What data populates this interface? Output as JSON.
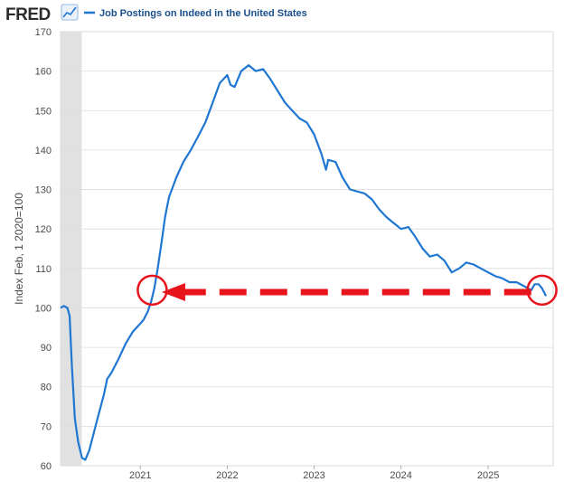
{
  "header": {
    "brand": "FRED",
    "brand_icon": "trend-chart-icon",
    "legend_label": "Job Postings on Indeed in the United States"
  },
  "chart_data": {
    "type": "line",
    "ylabel": "Index Feb, 1 2020=100",
    "xlabel": "",
    "ylim": [
      60,
      170
    ],
    "yticks": [
      60,
      70,
      80,
      90,
      100,
      110,
      120,
      130,
      140,
      150,
      160,
      170
    ],
    "xticks": [
      "2021",
      "2022",
      "2023",
      "2024",
      "2025"
    ],
    "x_range": [
      "2020-02-01",
      "2025-10-01"
    ],
    "recession_shading": [
      "2020-02-01",
      "2020-04-30"
    ],
    "grid": true,
    "colors": {
      "series": "#1f77d2",
      "annotation": "#e8141c",
      "recession": "#e1e1e1"
    },
    "series": [
      {
        "name": "Job Postings on Indeed in the United States",
        "points": [
          [
            "2020-02-01",
            100.0
          ],
          [
            "2020-02-15",
            100.5
          ],
          [
            "2020-03-01",
            100.0
          ],
          [
            "2020-03-10",
            98.0
          ],
          [
            "2020-03-20",
            85.0
          ],
          [
            "2020-04-01",
            72.0
          ],
          [
            "2020-04-15",
            66.0
          ],
          [
            "2020-05-01",
            62.0
          ],
          [
            "2020-05-15",
            61.5
          ],
          [
            "2020-06-01",
            64.0
          ],
          [
            "2020-07-01",
            71.0
          ],
          [
            "2020-08-01",
            78.0
          ],
          [
            "2020-08-15",
            82.0
          ],
          [
            "2020-09-01",
            83.5
          ],
          [
            "2020-10-01",
            87.0
          ],
          [
            "2020-11-01",
            91.0
          ],
          [
            "2020-12-01",
            94.0
          ],
          [
            "2021-01-01",
            96.0
          ],
          [
            "2021-01-15",
            97.0
          ],
          [
            "2021-02-01",
            99.0
          ],
          [
            "2021-02-15",
            101.5
          ],
          [
            "2021-03-01",
            105.0
          ],
          [
            "2021-03-15",
            110.0
          ],
          [
            "2021-04-01",
            117.0
          ],
          [
            "2021-04-15",
            123.0
          ],
          [
            "2021-05-01",
            128.0
          ],
          [
            "2021-06-01",
            133.0
          ],
          [
            "2021-07-01",
            137.0
          ],
          [
            "2021-08-01",
            140.0
          ],
          [
            "2021-09-01",
            143.5
          ],
          [
            "2021-10-01",
            147.0
          ],
          [
            "2021-11-01",
            152.0
          ],
          [
            "2021-12-01",
            157.0
          ],
          [
            "2022-01-01",
            159.0
          ],
          [
            "2022-01-15",
            156.5
          ],
          [
            "2022-02-01",
            156.0
          ],
          [
            "2022-02-15",
            158.0
          ],
          [
            "2022-03-01",
            160.0
          ],
          [
            "2022-04-01",
            161.5
          ],
          [
            "2022-05-01",
            160.0
          ],
          [
            "2022-06-01",
            160.5
          ],
          [
            "2022-07-01",
            158.0
          ],
          [
            "2022-08-01",
            155.0
          ],
          [
            "2022-09-01",
            152.0
          ],
          [
            "2022-10-01",
            150.0
          ],
          [
            "2022-11-01",
            148.0
          ],
          [
            "2022-12-01",
            147.0
          ],
          [
            "2023-01-01",
            144.0
          ],
          [
            "2023-02-01",
            139.0
          ],
          [
            "2023-02-20",
            135.0
          ],
          [
            "2023-03-01",
            137.5
          ],
          [
            "2023-04-01",
            137.0
          ],
          [
            "2023-05-01",
            133.0
          ],
          [
            "2023-06-01",
            130.0
          ],
          [
            "2023-07-01",
            129.5
          ],
          [
            "2023-08-01",
            129.0
          ],
          [
            "2023-09-01",
            127.5
          ],
          [
            "2023-10-01",
            125.0
          ],
          [
            "2023-11-01",
            123.0
          ],
          [
            "2023-12-01",
            121.5
          ],
          [
            "2024-01-01",
            120.0
          ],
          [
            "2024-02-01",
            120.5
          ],
          [
            "2024-03-01",
            118.0
          ],
          [
            "2024-04-01",
            115.0
          ],
          [
            "2024-05-01",
            113.0
          ],
          [
            "2024-06-01",
            113.5
          ],
          [
            "2024-07-01",
            112.0
          ],
          [
            "2024-08-01",
            109.0
          ],
          [
            "2024-09-01",
            110.0
          ],
          [
            "2024-10-01",
            111.5
          ],
          [
            "2024-11-01",
            111.0
          ],
          [
            "2024-12-01",
            110.0
          ],
          [
            "2025-01-01",
            109.0
          ],
          [
            "2025-02-01",
            108.0
          ],
          [
            "2025-03-01",
            107.5
          ],
          [
            "2025-04-01",
            106.5
          ],
          [
            "2025-05-01",
            106.5
          ],
          [
            "2025-06-01",
            105.5
          ],
          [
            "2025-07-01",
            104.5
          ],
          [
            "2025-07-15",
            106.0
          ],
          [
            "2025-08-01",
            106.0
          ],
          [
            "2025-08-15",
            105.0
          ],
          [
            "2025-09-01",
            103.0
          ]
        ]
      }
    ],
    "annotations": [
      {
        "type": "circle",
        "date": "2021-02-20",
        "value": 104.5
      },
      {
        "type": "circle",
        "date": "2025-08-15",
        "value": 104.5
      },
      {
        "type": "dashed-arrow",
        "from_date": "2025-07-01",
        "to_date": "2021-04-01",
        "value": 104.0
      }
    ]
  }
}
